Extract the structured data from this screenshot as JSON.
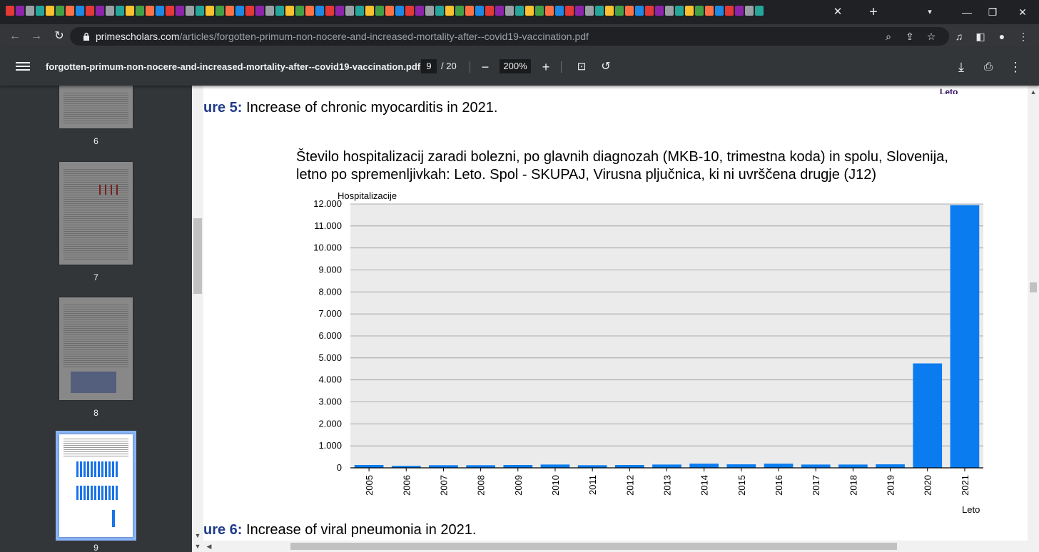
{
  "browser": {
    "url_host": "primescholars.com",
    "url_path": "/articles/forgotten-primum-non-nocere-and-increased-mortality-after--covid19-vaccination.pdf",
    "tab_close": "✕",
    "new_tab": "+"
  },
  "pdf_toolbar": {
    "filename": "forgotten-primum-non-nocere-and-increased-mortality-after--covid19-vaccination.pdf",
    "current_page": "9",
    "total_pages": "/ 20",
    "zoom": "200%"
  },
  "sidebar": {
    "thumbnails": [
      {
        "label": "6"
      },
      {
        "label": "7"
      },
      {
        "label": "8"
      },
      {
        "label": "9",
        "selected": true
      }
    ]
  },
  "page": {
    "top_caption_prefix": "ure 5:",
    "top_caption_text": " Increase of chronic myocarditis in 2021.",
    "bottom_caption_prefix": "ure 6:",
    "bottom_caption_text": " Increase of viral pneumonia in 2021.",
    "corner_fragment": "Leto"
  },
  "chart_data": {
    "type": "bar",
    "title": "Število hospitalizacij zaradi bolezni, po glavnih diagnozah (MKB-10, trimestna koda) in spolu, Slovenija, letno po spremenljivkah: Leto. Spol - SKUPAJ, Virusna pljučnica, ki ni uvrščena drugje (J12)",
    "ylabel": "Hospitalizacije",
    "xlabel": "Leto",
    "categories": [
      "2005",
      "2006",
      "2007",
      "2008",
      "2009",
      "2010",
      "2011",
      "2012",
      "2013",
      "2014",
      "2015",
      "2016",
      "2017",
      "2018",
      "2019",
      "2020",
      "2021"
    ],
    "values": [
      130,
      90,
      120,
      120,
      130,
      150,
      120,
      130,
      150,
      190,
      160,
      190,
      150,
      150,
      160,
      4750,
      11950
    ],
    "ylim": [
      0,
      12000
    ],
    "yticks": [
      "0",
      "1.000",
      "2.000",
      "3.000",
      "4.000",
      "5.000",
      "6.000",
      "7.000",
      "8.000",
      "9.000",
      "10.000",
      "11.000",
      "12.000"
    ],
    "bar_color": "#0a7cf0",
    "plot_background": "#ebebeb",
    "grid": true
  }
}
